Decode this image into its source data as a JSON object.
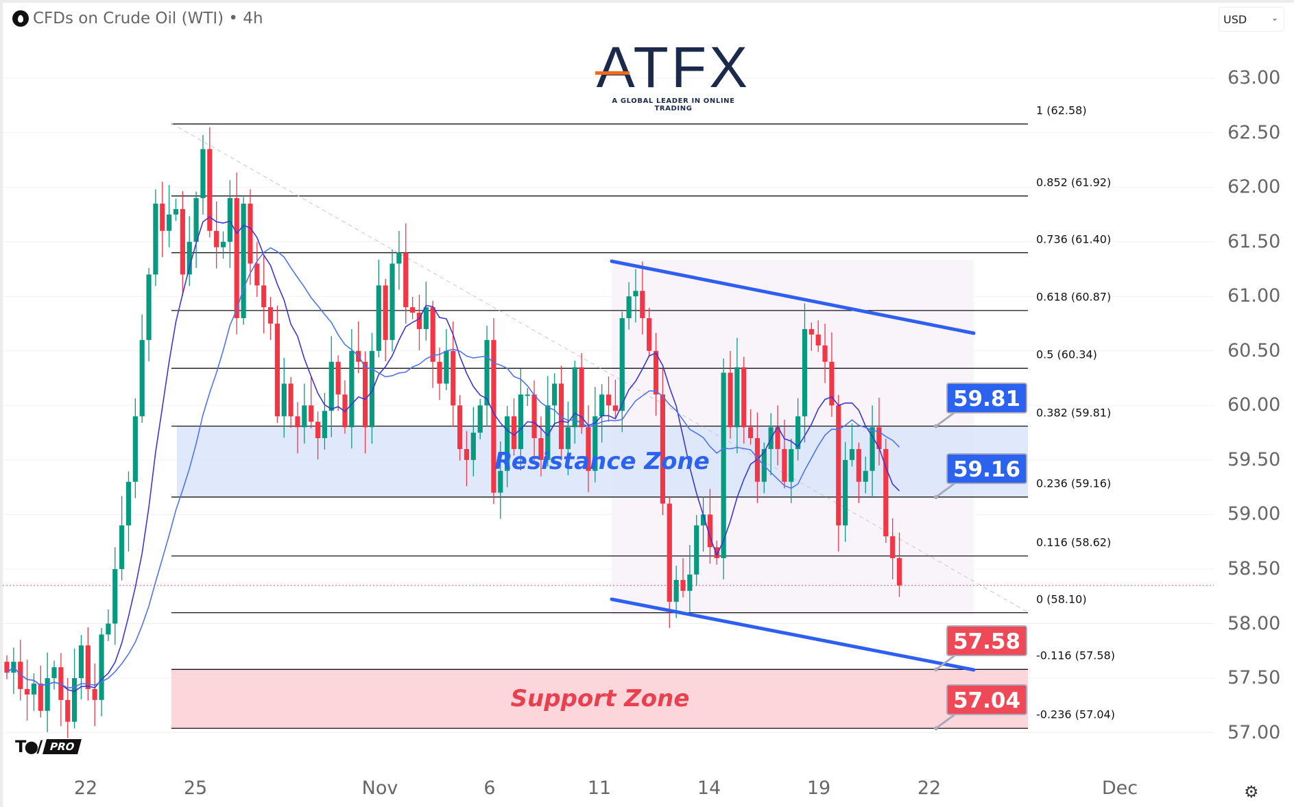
{
  "header": {
    "title": "CFDs on Crude Oil (WTI) • 4h",
    "symbol_icon": "oil-drop-icon",
    "currency": "USD"
  },
  "logo": {
    "text": "ATFX",
    "tagline": "A GLOBAL LEADER IN ONLINE TRADING"
  },
  "watermark": "TV PRO",
  "colors": {
    "up": "#089981",
    "down": "#f23645",
    "ma_fast": "#3b35d6",
    "ma_slow": "#4d73ee",
    "channel": "#2f5ff0",
    "resistance": "#dbe7fb",
    "support": "#fdd6dc",
    "callout_blue": "#2c62f0",
    "callout_red": "#ef4957"
  },
  "chart_data": {
    "type": "candlestick",
    "price_axis": {
      "ticks": [
        "63.00",
        "62.50",
        "62.00",
        "61.50",
        "61.00",
        "60.50",
        "60.00",
        "59.50",
        "59.00",
        "58.50",
        "58.00",
        "57.50",
        "57.00"
      ],
      "range": [
        56.8,
        63.2
      ]
    },
    "time_axis": {
      "ticks": [
        "22",
        "25",
        "Nov",
        "6",
        "11",
        "14",
        "19",
        "22",
        "Dec"
      ]
    },
    "closes": [
      57.55,
      57.65,
      57.4,
      57.35,
      57.45,
      57.2,
      57.5,
      57.6,
      57.3,
      57.1,
      57.5,
      57.8,
      57.4,
      57.3,
      57.9,
      58.0,
      58.5,
      58.9,
      59.3,
      59.9,
      60.6,
      61.2,
      61.85,
      61.6,
      61.75,
      61.8,
      61.2,
      61.5,
      61.9,
      62.35,
      61.6,
      61.45,
      61.5,
      61.9,
      60.8,
      61.85,
      61.3,
      61.1,
      60.9,
      60.75,
      59.9,
      60.2,
      59.9,
      59.8,
      60.0,
      59.85,
      59.7,
      59.95,
      60.4,
      60.1,
      59.8,
      60.5,
      60.4,
      59.8,
      60.5,
      61.1,
      60.6,
      61.3,
      61.4,
      60.9,
      60.85,
      60.7,
      60.9,
      60.4,
      60.2,
      60.5,
      60.0,
      59.6,
      59.5,
      59.75,
      60.0,
      60.6,
      59.2,
      59.4,
      59.9,
      59.6,
      60.1,
      60.1,
      59.7,
      59.5,
      60.0,
      60.2,
      59.6,
      59.8,
      60.35,
      59.8,
      59.4,
      59.9,
      60.1,
      60.0,
      59.95,
      60.8,
      61.0,
      61.05,
      60.8,
      60.5,
      60.1,
      59.1,
      58.2,
      58.4,
      58.3,
      58.45,
      58.9,
      59.0,
      58.7,
      58.6,
      60.3,
      59.8,
      60.35,
      59.8,
      59.7,
      59.3,
      59.6,
      59.8,
      59.6,
      59.3,
      59.6,
      59.9,
      60.7,
      60.65,
      60.55,
      60.4,
      60.0,
      58.9,
      59.5,
      59.6,
      59.3,
      59.4,
      59.8,
      59.6,
      58.8,
      58.6,
      58.35
    ],
    "moving_averages": [
      {
        "period": 9
      },
      {
        "period": 20
      }
    ],
    "current_price": 58.35,
    "high": 62.58,
    "fib_levels": [
      {
        "ratio": "1",
        "price": 62.58,
        "label": "1 (62.58)"
      },
      {
        "ratio": "0.852",
        "price": 61.92,
        "label": "0.852 (61.92)"
      },
      {
        "ratio": "0.736",
        "price": 61.4,
        "label": "0.736 (61.40)"
      },
      {
        "ratio": "0.618",
        "price": 60.87,
        "label": "0.618 (60.87)"
      },
      {
        "ratio": "0.5",
        "price": 60.34,
        "label": "0.5 (60.34)"
      },
      {
        "ratio": "0.382",
        "price": 59.81,
        "label": "0.382 (59.81)"
      },
      {
        "ratio": "0.236",
        "price": 59.16,
        "label": "0.236 (59.16)"
      },
      {
        "ratio": "0.116",
        "price": 58.62,
        "label": "0.116 (58.62)"
      },
      {
        "ratio": "0",
        "price": 58.1,
        "label": "0 (58.10)"
      },
      {
        "ratio": "-0.116",
        "price": 57.58,
        "label": "-0.116 (57.58)"
      },
      {
        "ratio": "-0.236",
        "price": 57.04,
        "label": "-0.236 (57.04)"
      }
    ],
    "zones": [
      {
        "label": "Resistance Zone",
        "from": 59.16,
        "to": 59.81
      },
      {
        "label": "Support Zone",
        "from": 57.04,
        "to": 57.58
      }
    ],
    "callouts": [
      {
        "text": "59.81",
        "price": 59.81,
        "color": "blue"
      },
      {
        "text": "59.16",
        "price": 59.16,
        "color": "blue"
      },
      {
        "text": "57.58",
        "price": 57.58,
        "color": "red"
      },
      {
        "text": "57.04",
        "price": 57.04,
        "color": "red"
      }
    ]
  }
}
